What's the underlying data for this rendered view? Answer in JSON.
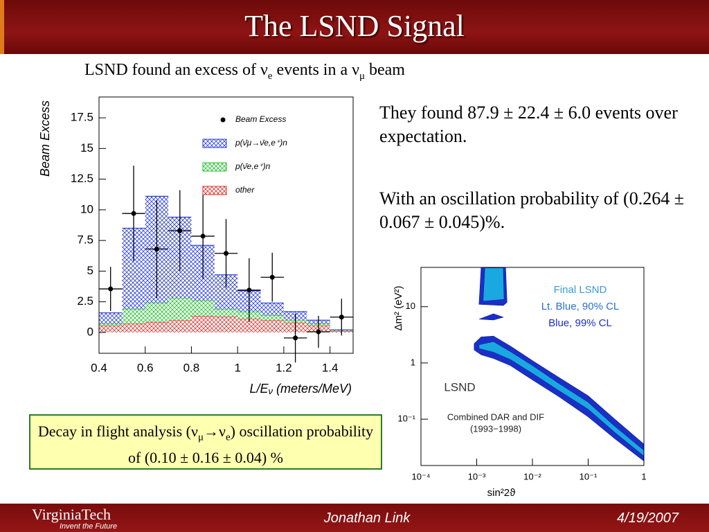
{
  "header": {
    "title": "The LSND Signal"
  },
  "subtitle": [
    "LSND found an excess of  ν",
    "e",
    " events in a ν",
    "μ",
    " beam"
  ],
  "text": {
    "p1": "They found 87.9 ± 22.4 ± 6.0 events over expectation.",
    "p2": "With an oscillation probability of (0.264 ± 0.067 ± 0.045)%."
  },
  "box": [
    "Decay in flight analysis (ν",
    "μ",
    "→ν",
    "e",
    ") oscillation probability of (0.10 ± 0.16 ± 0.04) %"
  ],
  "footer": {
    "logo": "VirginiaTech",
    "tagline": "Invent the Future",
    "author": "Jonathan Link",
    "date": "4/19/2007"
  },
  "chart_data": [
    {
      "type": "histogram",
      "ylabel": "Beam Excess",
      "xlabel": [
        "L/E",
        "ν",
        " (meters/MeV)"
      ],
      "bins": [
        0.4,
        0.5,
        0.6,
        0.7,
        0.8,
        0.9,
        1.0,
        1.1,
        1.2,
        1.3,
        1.4,
        1.5
      ],
      "xlim": [
        0.4,
        1.5
      ],
      "ylim": [
        -1.7,
        19.2
      ],
      "xticks": [
        0.4,
        0.6,
        0.8,
        1,
        1.2,
        1.4
      ],
      "yticks": [
        0,
        2.5,
        5,
        7.5,
        10,
        12.5,
        15,
        17.5
      ],
      "series": [
        {
          "name": "Beam Excess",
          "color": "#000000",
          "values": [
            3.55,
            9.7,
            6.8,
            8.3,
            7.85,
            6.45,
            3.45,
            4.5,
            -0.45,
            0.05,
            1.25
          ],
          "errors": [
            1.8,
            3.9,
            4.0,
            3.3,
            3.5,
            2.8,
            2.6,
            2.0,
            2.0,
            1.3,
            1.5
          ]
        },
        {
          "name": "p(ν̄μ→ν̄e,e⁺)n",
          "color": "#2a3fd6",
          "values": [
            0.9,
            6.6,
            8.7,
            6.6,
            4.5,
            2.8,
            1.7,
            1.0,
            0.7,
            0.3,
            0.0
          ]
        },
        {
          "name": "p(ν̄e,e⁺)n",
          "color": "#1fbf2a",
          "values": [
            0.15,
            1.2,
            1.55,
            1.8,
            1.25,
            0.6,
            0.6,
            0.4,
            0.2,
            0.15,
            0.1
          ]
        },
        {
          "name": "other",
          "color": "#e0302a",
          "values": [
            0.55,
            0.7,
            0.85,
            1.0,
            1.35,
            1.3,
            1.1,
            1.0,
            0.8,
            0.55,
            0.1
          ]
        }
      ]
    },
    {
      "type": "contour",
      "log_x": true,
      "log_y": true,
      "ylabel": "Δm² (eV²)",
      "xlabel": "sin²2ϑ",
      "xlim": [
        0.0001,
        1
      ],
      "ylim": [
        0.015,
        50
      ],
      "xticks": [
        {
          "value": 0.0001,
          "label": "10⁻⁴"
        },
        {
          "value": 0.001,
          "label": "10⁻³"
        },
        {
          "value": 0.01,
          "label": "10⁻²"
        },
        {
          "value": 0.1,
          "label": "10⁻¹"
        },
        1
      ],
      "yticks": [
        {
          "value": 0.1,
          "label": "10⁻¹"
        },
        1,
        10
      ],
      "annotations": [
        "Final LSND",
        "Lt. Blue, 90% CL",
        "Blue, 99% CL",
        "LSND",
        "Combined DAR and DIF",
        "(1993−1998)"
      ],
      "series": [
        {
          "color": "#1a2fc8",
          "x": [
            0.0009,
            0.0012,
            0.002,
            0.004,
            0.01,
            0.03,
            0.1,
            0.3,
            1,
            1,
            0.3,
            0.1,
            0.03,
            0.01,
            0.004,
            0.002,
            0.0012,
            0.0009
          ],
          "y": [
            2.2,
            2.9,
            3.0,
            2.0,
            1.1,
            0.55,
            0.26,
            0.1,
            0.036,
            0.018,
            0.045,
            0.11,
            0.25,
            0.5,
            0.9,
            1.2,
            1.4,
            1.7
          ]
        },
        {
          "color": "#1aa8e0",
          "x": [
            0.0011,
            0.002,
            0.004,
            0.01,
            0.03,
            0.1,
            0.3,
            1,
            1,
            0.3,
            0.1,
            0.03,
            0.01,
            0.004,
            0.002,
            0.0011
          ],
          "y": [
            2.1,
            2.4,
            1.6,
            0.9,
            0.43,
            0.2,
            0.075,
            0.028,
            0.022,
            0.058,
            0.15,
            0.32,
            0.65,
            1.15,
            1.55,
            1.8
          ]
        },
        {
          "color": "#1a2fc8",
          "x": [
            0.0011,
            0.0012,
            0.0033,
            0.0035,
            0.003
          ],
          "y": [
            11,
            50,
            50,
            12,
            10.5
          ]
        },
        {
          "color": "#1aa8e0",
          "x": [
            0.0013,
            0.0014,
            0.003,
            0.0031
          ],
          "y": [
            12.5,
            49,
            49,
            13.5
          ]
        },
        {
          "color": "#1a2fc8",
          "x": [
            0.0011,
            0.002,
            0.003,
            0.002
          ],
          "y": [
            6,
            7.5,
            6.5,
            5.8
          ]
        }
      ]
    }
  ]
}
